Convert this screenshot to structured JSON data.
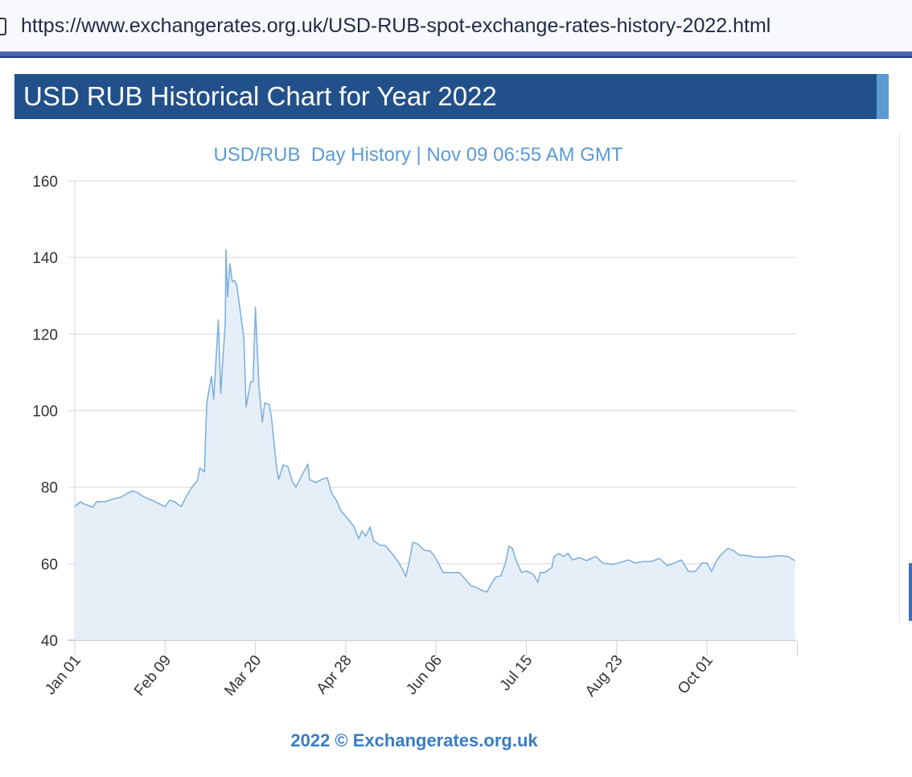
{
  "browser": {
    "url": "https://www.exchangerates.org.uk/USD-RUB-spot-exchange-rates-history-2022.html"
  },
  "header": {
    "title": "USD RUB Historical Chart for Year 2022"
  },
  "footer": {
    "credit": "2022 © Exchangerates.org.uk"
  },
  "colors": {
    "line": "#7fb1df",
    "fill": "#e6eff8",
    "title_bg": "#22508a",
    "subtitle": "#5b9bd5"
  },
  "chart_data": {
    "type": "area",
    "title": "USD/RUB  Day History | Nov 09 06:55 AM GMT",
    "xlabel": "",
    "ylabel": "",
    "x_unit": "days since Jan 01 2022",
    "xlim": [
      0,
      311
    ],
    "ylim": [
      40,
      160
    ],
    "yticks": [
      40,
      60,
      80,
      100,
      120,
      140,
      160
    ],
    "xticks": [
      {
        "day": 0,
        "label": "Jan 01"
      },
      {
        "day": 39,
        "label": "Feb 09"
      },
      {
        "day": 78,
        "label": "Mar 20"
      },
      {
        "day": 117,
        "label": "Apr 28"
      },
      {
        "day": 156,
        "label": "Jun 06"
      },
      {
        "day": 195,
        "label": "Jul 15"
      },
      {
        "day": 234,
        "label": "Aug 23"
      },
      {
        "day": 273,
        "label": "Oct 01"
      },
      {
        "day": 312,
        "label": ""
      }
    ],
    "grid": true,
    "series": [
      {
        "name": "USD/RUB",
        "points": [
          [
            0,
            74.9
          ],
          [
            2.4,
            76.2
          ],
          [
            4,
            75.6
          ],
          [
            6,
            75.2
          ],
          [
            7.6,
            74.7
          ],
          [
            9.4,
            76.2
          ],
          [
            13,
            76.2
          ],
          [
            16,
            76.8
          ],
          [
            20,
            77.4
          ],
          [
            23,
            78.5
          ],
          [
            25,
            79
          ],
          [
            27,
            78.6
          ],
          [
            30,
            77.4
          ],
          [
            34,
            76.4
          ],
          [
            37,
            75.5
          ],
          [
            39,
            74.9
          ],
          [
            41,
            76.6
          ],
          [
            43,
            76.2
          ],
          [
            46,
            74.9
          ],
          [
            48,
            77.4
          ],
          [
            51,
            80.3
          ],
          [
            53,
            81.8
          ],
          [
            54,
            85
          ],
          [
            56,
            84
          ],
          [
            57,
            102
          ],
          [
            59,
            109
          ],
          [
            60,
            103
          ],
          [
            62,
            123.7
          ],
          [
            63,
            104.5
          ],
          [
            65,
            123
          ],
          [
            65.3,
            142
          ],
          [
            66,
            129.7
          ],
          [
            67,
            138.4
          ],
          [
            68,
            133.7
          ],
          [
            69,
            134
          ],
          [
            70,
            132.7
          ],
          [
            73,
            119
          ],
          [
            74,
            101
          ],
          [
            76,
            107.5
          ],
          [
            77,
            107.7
          ],
          [
            78,
            127
          ],
          [
            79.5,
            106.4
          ],
          [
            81,
            97
          ],
          [
            82,
            102
          ],
          [
            84,
            101.6
          ],
          [
            85,
            98
          ],
          [
            87,
            85.8
          ],
          [
            88,
            82
          ],
          [
            90,
            85.8
          ],
          [
            92,
            85.4
          ],
          [
            94,
            81.4
          ],
          [
            95.5,
            80
          ],
          [
            98,
            83
          ],
          [
            100.7,
            86
          ],
          [
            101.4,
            82
          ],
          [
            104,
            81.2
          ],
          [
            106.6,
            82
          ],
          [
            109,
            82.5
          ],
          [
            111,
            78.3
          ],
          [
            113,
            76.6
          ],
          [
            115,
            73.8
          ],
          [
            118,
            71.7
          ],
          [
            120.5,
            69.8
          ],
          [
            122.6,
            66.5
          ],
          [
            124,
            68.6
          ],
          [
            125.7,
            67.2
          ],
          [
            127.5,
            69.6
          ],
          [
            129,
            66
          ],
          [
            132,
            64.8
          ],
          [
            134,
            64.8
          ],
          [
            137,
            62.7
          ],
          [
            139.6,
            60.6
          ],
          [
            142,
            58
          ],
          [
            143,
            56.6
          ],
          [
            145,
            62.3
          ],
          [
            146,
            65.6
          ],
          [
            148,
            65.2
          ],
          [
            151,
            63.5
          ],
          [
            153.5,
            63.3
          ],
          [
            155,
            62.3
          ],
          [
            157,
            60.2
          ],
          [
            159,
            57.7
          ],
          [
            162,
            57.7
          ],
          [
            166,
            57.7
          ],
          [
            168,
            56.4
          ],
          [
            171,
            54.3
          ],
          [
            173,
            53.9
          ],
          [
            176,
            53
          ],
          [
            178,
            52.6
          ],
          [
            180,
            54.9
          ],
          [
            182,
            56.6
          ],
          [
            184,
            56.8
          ],
          [
            186,
            60.2
          ],
          [
            187.5,
            64.6
          ],
          [
            189,
            64
          ],
          [
            191,
            60.2
          ],
          [
            193,
            57.7
          ],
          [
            195,
            58.1
          ],
          [
            198,
            57.3
          ],
          [
            200,
            55.1
          ],
          [
            201,
            57.7
          ],
          [
            203,
            57.7
          ],
          [
            206,
            59
          ],
          [
            207,
            61.9
          ],
          [
            209,
            62.7
          ],
          [
            211,
            61.9
          ],
          [
            213,
            62.7
          ],
          [
            215,
            61
          ],
          [
            218,
            61.6
          ],
          [
            221,
            60.8
          ],
          [
            225,
            61.9
          ],
          [
            228,
            60.2
          ],
          [
            232,
            59.8
          ],
          [
            235,
            60.2
          ],
          [
            239,
            61
          ],
          [
            242,
            60.2
          ],
          [
            246,
            60.6
          ],
          [
            249,
            60.6
          ],
          [
            252.5,
            61.4
          ],
          [
            256,
            59.5
          ],
          [
            259,
            60.2
          ],
          [
            262,
            61
          ],
          [
            265,
            58
          ],
          [
            268,
            58
          ],
          [
            271,
            60.2
          ],
          [
            273,
            60.2
          ],
          [
            275,
            58
          ],
          [
            277,
            60.6
          ],
          [
            279,
            62.3
          ],
          [
            282,
            64
          ],
          [
            284,
            63.6
          ],
          [
            287,
            62.3
          ],
          [
            291,
            62.1
          ],
          [
            294,
            61.7
          ],
          [
            298,
            61.7
          ],
          [
            301,
            61.9
          ],
          [
            304,
            62.1
          ],
          [
            308,
            61.9
          ],
          [
            311,
            60.8
          ]
        ]
      }
    ]
  }
}
